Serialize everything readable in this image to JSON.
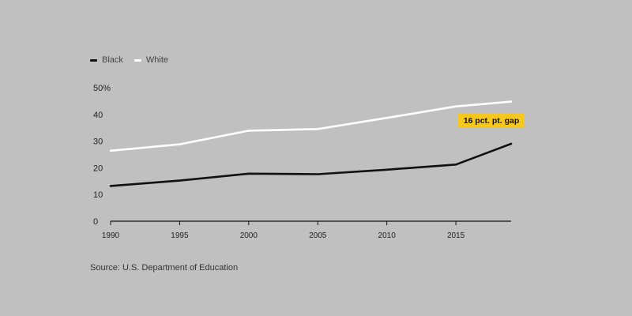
{
  "chart_data": {
    "type": "line",
    "title": "",
    "xlabel": "",
    "ylabel": "",
    "x": [
      1990,
      1995,
      2000,
      2005,
      2010,
      2015,
      2019
    ],
    "x_ticks": [
      1990,
      1995,
      2000,
      2005,
      2010,
      2015
    ],
    "y_ticks": [
      0,
      10,
      20,
      30,
      40,
      50
    ],
    "y_top_tick_label": "50%",
    "xlim": [
      1990,
      2019
    ],
    "ylim": [
      0,
      50
    ],
    "grid": false,
    "legend_position": "top-left",
    "series": [
      {
        "name": "Black",
        "color": "#111111",
        "values": [
          13.2,
          15.2,
          17.8,
          17.6,
          19.3,
          21.2,
          29.0
        ]
      },
      {
        "name": "White",
        "color": "#ffffff",
        "values": [
          26.4,
          28.8,
          33.9,
          34.5,
          38.7,
          43.0,
          44.8
        ]
      }
    ],
    "annotation": {
      "text": "16 pct. pt. gap",
      "background": "#f5c81f"
    },
    "source": "Source: U.S. Department of Education"
  }
}
